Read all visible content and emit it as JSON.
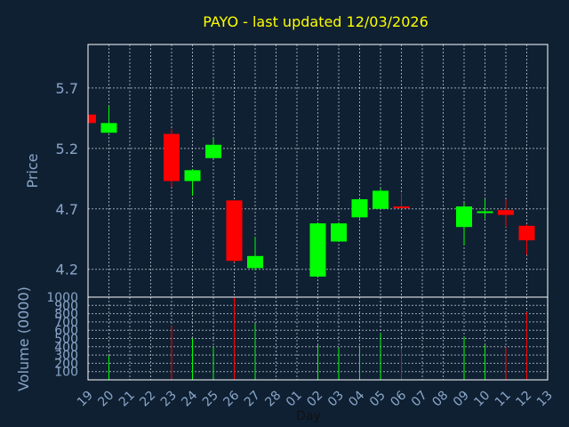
{
  "title": "PAYO - last updated 12/03/2026",
  "colors": {
    "background": "#0f2033",
    "up": "#00ff00",
    "down": "#ff0000",
    "title": "#ffff00",
    "axis_text": "#8aa6c8",
    "frame": "#ffffff",
    "grid": "#c8d0d8"
  },
  "chart_data": [
    {
      "type": "candlestick",
      "title": "PAYO - last updated 12/03/2026",
      "ylabel": "Price",
      "xlabel": "Day",
      "ylim": [
        3.97,
        6.06
      ],
      "yticks": [
        "4.2",
        "4.7",
        "5.2",
        "5.7"
      ],
      "categories": [
        "19",
        "20",
        "21",
        "22",
        "23",
        "24",
        "25",
        "26",
        "27",
        "28",
        "01",
        "02",
        "03",
        "04",
        "05",
        "06",
        "07",
        "08",
        "09",
        "10",
        "11",
        "12",
        "13"
      ],
      "candles": [
        {
          "day": "19",
          "open": 5.48,
          "high": 5.48,
          "low": 5.41,
          "close": 5.41
        },
        {
          "day": "20",
          "open": 5.33,
          "high": 5.55,
          "low": 5.33,
          "close": 5.41
        },
        {
          "day": "23",
          "open": 5.32,
          "high": 5.36,
          "low": 4.88,
          "close": 4.93
        },
        {
          "day": "24",
          "open": 4.93,
          "high": 5.03,
          "low": 4.81,
          "close": 5.02
        },
        {
          "day": "25",
          "open": 5.12,
          "high": 5.28,
          "low": 5.12,
          "close": 5.23
        },
        {
          "day": "26",
          "open": 4.77,
          "high": 4.77,
          "low": 4.26,
          "close": 4.27
        },
        {
          "day": "27",
          "open": 4.21,
          "high": 4.47,
          "low": 4.19,
          "close": 4.31
        },
        {
          "day": "02",
          "open": 4.14,
          "high": 4.59,
          "low": 4.14,
          "close": 4.58
        },
        {
          "day": "03",
          "open": 4.43,
          "high": 4.59,
          "low": 4.43,
          "close": 4.58
        },
        {
          "day": "04",
          "open": 4.63,
          "high": 4.78,
          "low": 4.62,
          "close": 4.78
        },
        {
          "day": "05",
          "open": 4.7,
          "high": 4.87,
          "low": 4.7,
          "close": 4.85
        },
        {
          "day": "06",
          "open": 4.72,
          "high": 4.83,
          "low": 4.7,
          "close": 4.71
        },
        {
          "day": "09",
          "open": 4.55,
          "high": 4.75,
          "low": 4.4,
          "close": 4.72
        },
        {
          "day": "10",
          "open": 4.67,
          "high": 4.78,
          "low": 4.62,
          "close": 4.68
        },
        {
          "day": "11",
          "open": 4.69,
          "high": 4.78,
          "low": 4.55,
          "close": 4.65
        },
        {
          "day": "12",
          "open": 4.56,
          "high": 4.57,
          "low": 4.32,
          "close": 4.44
        }
      ]
    },
    {
      "type": "bar",
      "ylabel": "Volume (0000)",
      "xlabel": "Day",
      "ylim": [
        0,
        1000
      ],
      "yticks": [
        "100",
        "200",
        "300",
        "400",
        "500",
        "600",
        "700",
        "800",
        "900",
        "1000"
      ],
      "categories": [
        "19",
        "20",
        "21",
        "22",
        "23",
        "24",
        "25",
        "26",
        "27",
        "28",
        "01",
        "02",
        "03",
        "04",
        "05",
        "06",
        "07",
        "08",
        "09",
        "10",
        "11",
        "12",
        "13"
      ],
      "volumes": [
        {
          "day": "19",
          "value": 0,
          "direction": "down"
        },
        {
          "day": "20",
          "value": 290,
          "direction": "up"
        },
        {
          "day": "23",
          "value": 650,
          "direction": "down"
        },
        {
          "day": "24",
          "value": 500,
          "direction": "up"
        },
        {
          "day": "25",
          "value": 400,
          "direction": "up"
        },
        {
          "day": "26",
          "value": 1000,
          "direction": "down"
        },
        {
          "day": "27",
          "value": 680,
          "direction": "up"
        },
        {
          "day": "02",
          "value": 420,
          "direction": "up"
        },
        {
          "day": "03",
          "value": 380,
          "direction": "up"
        },
        {
          "day": "04",
          "value": 410,
          "direction": "up"
        },
        {
          "day": "05",
          "value": 560,
          "direction": "up"
        },
        {
          "day": "06",
          "value": 380,
          "direction": "down"
        },
        {
          "day": "09",
          "value": 520,
          "direction": "up"
        },
        {
          "day": "10",
          "value": 420,
          "direction": "up"
        },
        {
          "day": "11",
          "value": 390,
          "direction": "down"
        },
        {
          "day": "12",
          "value": 820,
          "direction": "down"
        }
      ]
    }
  ]
}
